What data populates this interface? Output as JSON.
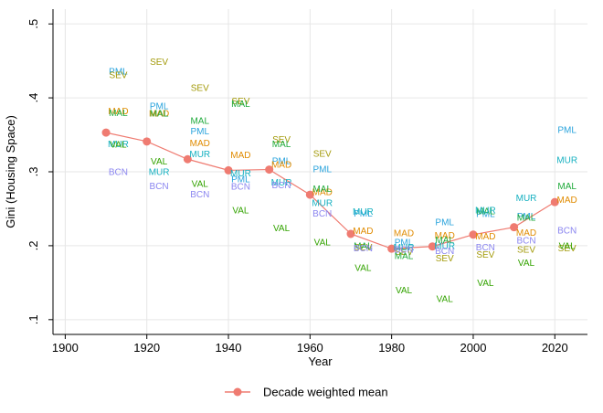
{
  "chart_data": {
    "type": "scatter",
    "xlabel": "Year",
    "ylabel": "Gini (Housing Space)",
    "xlim": [
      1897,
      2028
    ],
    "ylim": [
      0.08,
      0.52
    ],
    "x_ticks": [
      1900,
      1920,
      1940,
      1960,
      1980,
      2000,
      2020
    ],
    "x_tick_labels": [
      "1900",
      "1920",
      "1940",
      "1960",
      "1980",
      "2000",
      "2020"
    ],
    "y_ticks": [
      0.1,
      0.2,
      0.3,
      0.4,
      0.5
    ],
    "y_tick_labels": [
      ".1",
      ".2",
      ".3",
      ".4",
      ".5"
    ],
    "grid": true,
    "colors": {
      "PML": "#29a3dc",
      "SEV": "#a39a0a",
      "MAD": "#e08b00",
      "MAL": "#1faa3b",
      "MUR": "#15b0c0",
      "VAL": "#33a300",
      "BCN": "#8b86f0",
      "mean": "#ef7b71"
    },
    "city_series": [
      {
        "name": "PML",
        "x": [
          1913,
          1923,
          1933,
          1943,
          1953,
          1963,
          1973,
          1983,
          1993,
          2003,
          2013,
          2023
        ],
        "y": [
          0.436,
          0.389,
          0.355,
          0.29,
          0.315,
          0.304,
          0.244,
          0.205,
          0.232,
          0.243,
          0.24,
          0.357
        ]
      },
      {
        "name": "SEV",
        "x": [
          1913,
          1923,
          1933,
          1943,
          1953,
          1963,
          1973,
          1983,
          1993,
          2003,
          2013,
          2023
        ],
        "y": [
          0.431,
          0.449,
          0.414,
          0.396,
          0.344,
          0.325,
          0.198,
          0.192,
          0.183,
          0.188,
          0.195,
          0.197
        ]
      },
      {
        "name": "MAD",
        "x": [
          1913,
          1923,
          1933,
          1943,
          1953,
          1963,
          1973,
          1983,
          1993,
          2003,
          2013,
          2023
        ],
        "y": [
          0.382,
          0.379,
          0.339,
          0.323,
          0.31,
          0.273,
          0.22,
          0.217,
          0.214,
          0.213,
          0.218,
          0.262
        ]
      },
      {
        "name": "MAL",
        "x": [
          1913,
          1923,
          1933,
          1943,
          1953,
          1963,
          1973,
          1983,
          1993,
          2003,
          2013,
          2023
        ],
        "y": [
          0.38,
          0.379,
          0.369,
          0.392,
          0.338,
          0.277,
          0.2,
          0.186,
          0.208,
          0.247,
          0.238,
          0.281
        ]
      },
      {
        "name": "MUR",
        "x": [
          1913,
          1923,
          1933,
          1943,
          1953,
          1963,
          1973,
          1983,
          1993,
          2003,
          2013,
          2023
        ],
        "y": [
          0.338,
          0.3,
          0.324,
          0.298,
          0.286,
          0.258,
          0.246,
          0.198,
          0.2,
          0.248,
          0.265,
          0.316
        ]
      },
      {
        "name": "VAL",
        "x": [
          1913,
          1923,
          1933,
          1943,
          1953,
          1963,
          1973,
          1983,
          1993,
          2003,
          2013,
          2023
        ],
        "y": [
          0.337,
          0.314,
          0.284,
          0.248,
          0.224,
          0.205,
          0.17,
          0.14,
          0.128,
          0.15,
          0.177,
          0.2
        ]
      },
      {
        "name": "BCN",
        "x": [
          1913,
          1923,
          1933,
          1943,
          1953,
          1963,
          1973,
          1983,
          1993,
          2003,
          2013,
          2023
        ],
        "y": [
          0.3,
          0.281,
          0.27,
          0.28,
          0.282,
          0.244,
          0.197,
          0.195,
          0.193,
          0.198,
          0.207,
          0.221
        ]
      }
    ],
    "mean_series": {
      "name": "Decade weighted mean",
      "x": [
        1910,
        1920,
        1930,
        1940,
        1950,
        1960,
        1970,
        1980,
        1990,
        2000,
        2010,
        2020
      ],
      "y": [
        0.353,
        0.341,
        0.317,
        0.302,
        0.303,
        0.269,
        0.216,
        0.196,
        0.199,
        0.215,
        0.225,
        0.259
      ]
    },
    "legend": {
      "entries": [
        "Decade weighted mean"
      ],
      "placement": "bottom-center"
    }
  }
}
